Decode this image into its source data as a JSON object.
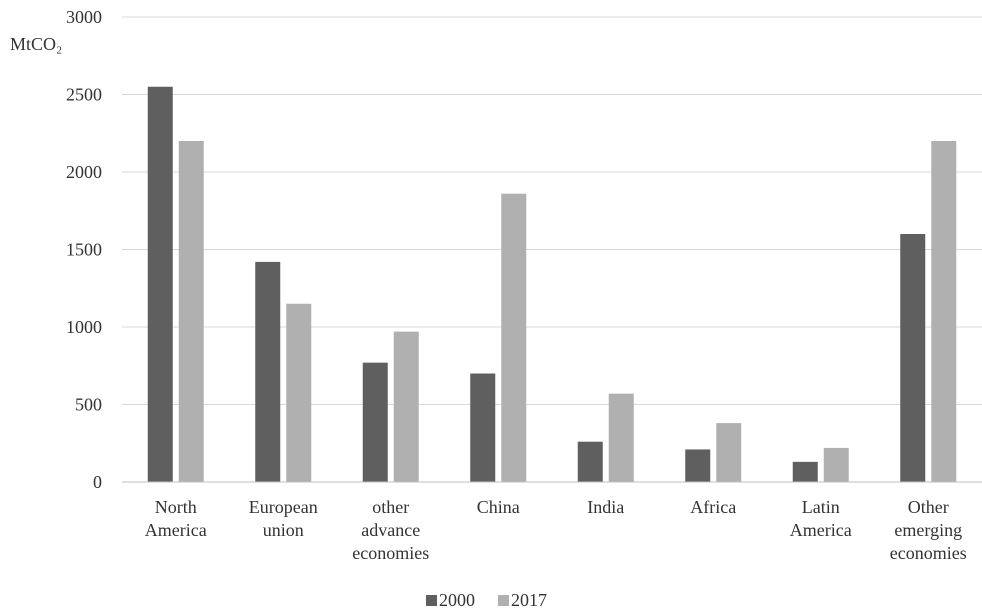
{
  "chart_data": {
    "type": "bar",
    "title": "",
    "xlabel": "",
    "ylabel": "MtCO₂",
    "ylim": [
      0,
      3000
    ],
    "yticks": [
      0,
      500,
      1000,
      1500,
      2000,
      2500,
      3000
    ],
    "grid": true,
    "legend": "bottom",
    "categories": [
      [
        "North",
        "America"
      ],
      [
        "European",
        "union"
      ],
      [
        "other",
        "advance",
        "economies"
      ],
      [
        "China"
      ],
      [
        "India"
      ],
      [
        "Africa"
      ],
      [
        "Latin",
        "America"
      ],
      [
        "Other",
        "emerging",
        "economies"
      ]
    ],
    "series": [
      {
        "name": "2000",
        "color": "#5f5f5f",
        "values": [
          2550,
          1420,
          770,
          700,
          260,
          210,
          130,
          1600
        ]
      },
      {
        "name": "2017",
        "color": "#b0b0b0",
        "values": [
          2200,
          1150,
          970,
          1860,
          570,
          380,
          220,
          2200
        ]
      }
    ]
  }
}
